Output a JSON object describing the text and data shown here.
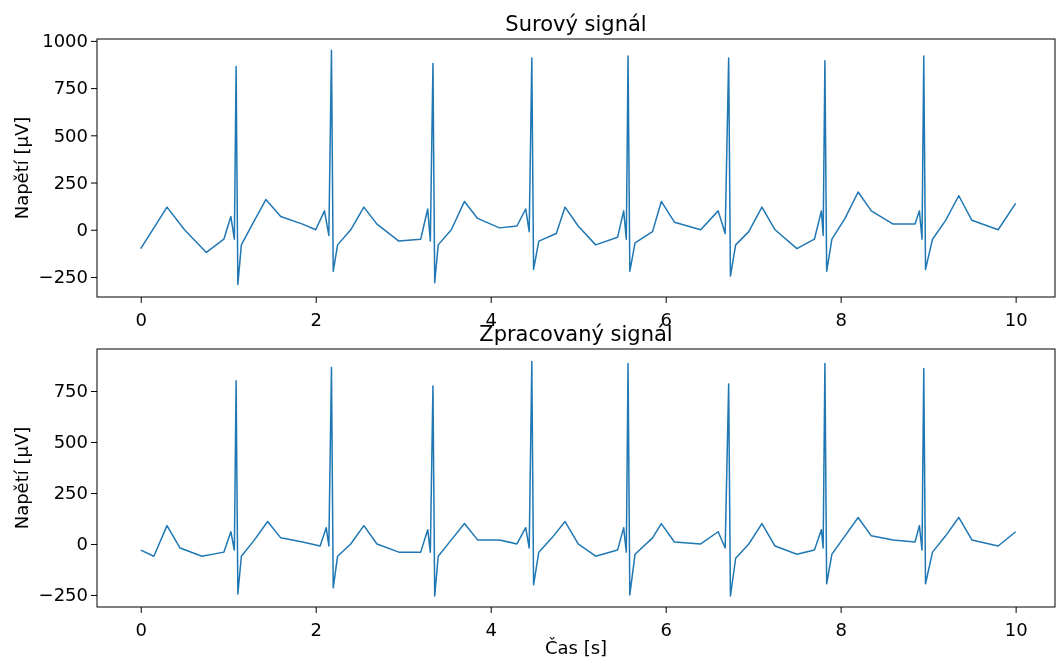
{
  "chart_data": [
    {
      "type": "line",
      "title": "Surový signál",
      "ylabel": "Napětí [µV]",
      "x": [
        0,
        0.3,
        0.5,
        0.75,
        0.95,
        1.03,
        1.07,
        1.09,
        1.11,
        1.15,
        1.3,
        1.43,
        1.6,
        1.85,
        2.0,
        2.1,
        2.15,
        2.18,
        2.2,
        2.25,
        2.4,
        2.55,
        2.7,
        2.95,
        3.2,
        3.28,
        3.31,
        3.34,
        3.36,
        3.4,
        3.55,
        3.7,
        3.85,
        4.1,
        4.3,
        4.4,
        4.44,
        4.47,
        4.49,
        4.55,
        4.75,
        4.85,
        5.0,
        5.2,
        5.45,
        5.52,
        5.55,
        5.57,
        5.59,
        5.65,
        5.85,
        5.95,
        6.1,
        6.4,
        6.6,
        6.68,
        6.72,
        6.74,
        6.8,
        6.95,
        7.1,
        7.25,
        7.5,
        7.7,
        7.78,
        7.8,
        7.82,
        7.84,
        7.9,
        8.05,
        8.2,
        8.35,
        8.6,
        8.85,
        8.9,
        8.93,
        8.95,
        8.97,
        9.05,
        9.2,
        9.35,
        9.5,
        9.8,
        10.0
      ],
      "series": [
        {
          "color": "#1f77b4",
          "values": [
            -100,
            120,
            0,
            -120,
            -50,
            70,
            -50,
            865,
            -290,
            -80,
            50,
            160,
            70,
            30,
            0,
            100,
            -30,
            950,
            -220,
            -80,
            0,
            120,
            30,
            -60,
            -50,
            110,
            -60,
            880,
            -280,
            -80,
            0,
            150,
            60,
            10,
            20,
            110,
            -10,
            910,
            -210,
            -60,
            -20,
            120,
            20,
            -80,
            -40,
            100,
            -50,
            920,
            -220,
            -70,
            -10,
            150,
            40,
            0,
            100,
            -20,
            910,
            -245,
            -80,
            -10,
            120,
            0,
            -100,
            -50,
            100,
            -30,
            895,
            -220,
            -50,
            60,
            200,
            100,
            30,
            30,
            100,
            -50,
            920,
            -210,
            -50,
            50,
            180,
            50,
            0,
            140
          ]
        }
      ],
      "xlim": [
        -0.5,
        10.45
      ],
      "ylim": [
        -356,
        1010
      ],
      "xticks": [
        0,
        2,
        4,
        6,
        8,
        10
      ],
      "yticks": [
        -250,
        0,
        250,
        500,
        750,
        1000
      ]
    },
    {
      "type": "line",
      "title": "Zpracovaný signál",
      "xlabel": "Čas [s]",
      "ylabel": "Napětí [µV]",
      "x": [
        0,
        0.15,
        0.3,
        0.45,
        0.7,
        0.95,
        1.03,
        1.07,
        1.09,
        1.11,
        1.15,
        1.3,
        1.45,
        1.6,
        1.85,
        2.05,
        2.12,
        2.15,
        2.18,
        2.2,
        2.25,
        2.4,
        2.55,
        2.7,
        2.95,
        3.2,
        3.28,
        3.31,
        3.34,
        3.36,
        3.4,
        3.55,
        3.7,
        3.85,
        4.1,
        4.3,
        4.4,
        4.44,
        4.47,
        4.49,
        4.55,
        4.7,
        4.85,
        5.0,
        5.2,
        5.45,
        5.52,
        5.55,
        5.57,
        5.59,
        5.65,
        5.85,
        5.95,
        6.1,
        6.4,
        6.6,
        6.68,
        6.72,
        6.74,
        6.8,
        6.95,
        7.1,
        7.25,
        7.5,
        7.7,
        7.78,
        7.8,
        7.82,
        7.84,
        7.9,
        8.05,
        8.2,
        8.35,
        8.6,
        8.85,
        8.9,
        8.93,
        8.95,
        8.97,
        9.05,
        9.2,
        9.35,
        9.5,
        9.8,
        10.0
      ],
      "series": [
        {
          "color": "#1f77b4",
          "values": [
            -30,
            -60,
            90,
            -20,
            -60,
            -40,
            60,
            -30,
            800,
            -245,
            -60,
            20,
            110,
            30,
            10,
            -10,
            80,
            -10,
            865,
            -215,
            -60,
            0,
            90,
            0,
            -40,
            -40,
            70,
            -40,
            775,
            -255,
            -60,
            20,
            100,
            20,
            20,
            0,
            80,
            -20,
            895,
            -200,
            -40,
            30,
            110,
            0,
            -60,
            -30,
            80,
            -40,
            885,
            -250,
            -50,
            30,
            100,
            10,
            0,
            60,
            -20,
            785,
            -255,
            -70,
            0,
            100,
            -10,
            -50,
            -30,
            70,
            -20,
            885,
            -195,
            -50,
            40,
            130,
            40,
            20,
            10,
            90,
            -30,
            860,
            -195,
            -40,
            40,
            130,
            20,
            -10,
            60
          ]
        }
      ],
      "xlim": [
        -0.5,
        10.45
      ],
      "ylim": [
        -309,
        956
      ],
      "xticks": [
        0,
        2,
        4,
        6,
        8,
        10
      ],
      "yticks": [
        -250,
        0,
        250,
        500,
        750
      ]
    }
  ]
}
